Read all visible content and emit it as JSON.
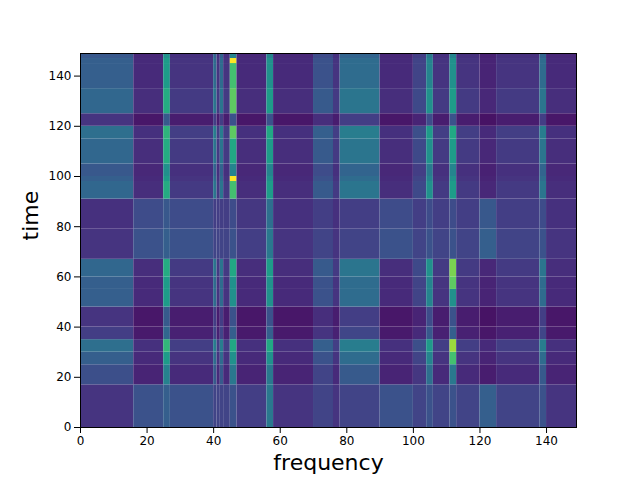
{
  "chart_data": {
    "type": "heatmap",
    "x_label": "frequency",
    "y_label": "time",
    "xlim": [
      0,
      149
    ],
    "ylim": [
      0,
      149
    ],
    "xticks": [
      0,
      20,
      40,
      60,
      80,
      100,
      120,
      140
    ],
    "yticks": [
      0,
      20,
      40,
      60,
      80,
      100,
      120,
      140
    ],
    "color": "viridis",
    "color_range": [
      0,
      1
    ],
    "x_edges": [
      0,
      16,
      25,
      27,
      40,
      41,
      42,
      43,
      45,
      47,
      56,
      58,
      70,
      76,
      78,
      90,
      100,
      104,
      106,
      111,
      113,
      120,
      125,
      138,
      140,
      149
    ],
    "y_edges": [
      0,
      17,
      25,
      30,
      35,
      40,
      48,
      55,
      60,
      67,
      79,
      91,
      98,
      100,
      105,
      115,
      120,
      125,
      135,
      145,
      147,
      149
    ],
    "cells": [
      [
        0.15,
        0.25,
        0.3,
        0.25,
        0.2,
        0.2,
        0.2,
        0.2,
        0.25,
        0.18,
        0.4,
        0.15,
        0.2,
        0.15,
        0.2,
        0.25,
        0.2,
        0.25,
        0.2,
        0.25,
        0.2,
        0.3,
        0.2,
        0.25,
        0.15
      ],
      [
        0.24,
        0.1,
        0.44,
        0.12,
        0.28,
        0.12,
        0.28,
        0.12,
        0.4,
        0.1,
        0.4,
        0.1,
        0.2,
        0.12,
        0.28,
        0.1,
        0.16,
        0.36,
        0.12,
        0.4,
        0.12,
        0.08,
        0.12,
        0.28,
        0.1
      ],
      [
        0.3,
        0.12,
        0.55,
        0.15,
        0.35,
        0.15,
        0.35,
        0.15,
        0.5,
        0.12,
        0.5,
        0.12,
        0.25,
        0.15,
        0.35,
        0.12,
        0.2,
        0.45,
        0.15,
        0.7,
        0.15,
        0.1,
        0.15,
        0.35,
        0.12
      ],
      [
        0.36,
        0.14,
        0.66,
        0.18,
        0.42,
        0.18,
        0.42,
        0.18,
        0.6,
        0.14,
        0.6,
        0.14,
        0.3,
        0.18,
        0.42,
        0.14,
        0.24,
        0.54,
        0.18,
        0.85,
        0.18,
        0.12,
        0.18,
        0.42,
        0.14
      ],
      [
        0.18,
        0.07,
        0.33,
        0.09,
        0.21,
        0.09,
        0.21,
        0.09,
        0.3,
        0.07,
        0.3,
        0.07,
        0.15,
        0.09,
        0.21,
        0.07,
        0.12,
        0.27,
        0.09,
        0.3,
        0.09,
        0.06,
        0.09,
        0.21,
        0.07
      ],
      [
        0.15,
        0.06,
        0.28,
        0.08,
        0.18,
        0.08,
        0.18,
        0.08,
        0.25,
        0.06,
        0.25,
        0.06,
        0.13,
        0.08,
        0.18,
        0.06,
        0.1,
        0.23,
        0.08,
        0.25,
        0.08,
        0.05,
        0.08,
        0.18,
        0.06
      ],
      [
        0.3,
        0.12,
        0.55,
        0.15,
        0.35,
        0.15,
        0.35,
        0.15,
        0.5,
        0.12,
        0.5,
        0.12,
        0.25,
        0.15,
        0.35,
        0.12,
        0.2,
        0.45,
        0.15,
        0.5,
        0.15,
        0.1,
        0.15,
        0.35,
        0.12
      ],
      [
        0.3,
        0.12,
        0.55,
        0.15,
        0.35,
        0.15,
        0.35,
        0.15,
        0.5,
        0.12,
        0.5,
        0.12,
        0.25,
        0.15,
        0.35,
        0.12,
        0.2,
        0.45,
        0.15,
        0.75,
        0.15,
        0.1,
        0.15,
        0.35,
        0.12
      ],
      [
        0.33,
        0.13,
        0.61,
        0.17,
        0.39,
        0.17,
        0.39,
        0.17,
        0.6,
        0.13,
        0.55,
        0.13,
        0.28,
        0.17,
        0.39,
        0.13,
        0.22,
        0.5,
        0.17,
        0.8,
        0.17,
        0.11,
        0.17,
        0.39,
        0.13
      ],
      [
        0.15,
        0.25,
        0.3,
        0.25,
        0.2,
        0.2,
        0.2,
        0.2,
        0.25,
        0.18,
        0.4,
        0.15,
        0.2,
        0.15,
        0.2,
        0.25,
        0.2,
        0.25,
        0.2,
        0.25,
        0.2,
        0.3,
        0.2,
        0.25,
        0.15
      ],
      [
        0.14,
        0.23,
        0.27,
        0.23,
        0.18,
        0.18,
        0.18,
        0.18,
        0.23,
        0.16,
        0.36,
        0.14,
        0.18,
        0.14,
        0.18,
        0.23,
        0.18,
        0.23,
        0.18,
        0.23,
        0.18,
        0.27,
        0.18,
        0.23,
        0.14
      ],
      [
        0.33,
        0.13,
        0.61,
        0.17,
        0.39,
        0.17,
        0.39,
        0.17,
        0.7,
        0.13,
        0.55,
        0.13,
        0.28,
        0.17,
        0.39,
        0.13,
        0.22,
        0.5,
        0.17,
        0.55,
        0.17,
        0.11,
        0.17,
        0.39,
        0.13
      ],
      [
        0.3,
        0.12,
        0.55,
        0.15,
        0.35,
        0.15,
        0.35,
        0.15,
        1.0,
        0.12,
        0.5,
        0.12,
        0.25,
        0.15,
        0.35,
        0.12,
        0.2,
        0.45,
        0.15,
        0.5,
        0.15,
        0.1,
        0.15,
        0.35,
        0.12
      ],
      [
        0.27,
        0.11,
        0.5,
        0.14,
        0.32,
        0.14,
        0.32,
        0.14,
        0.45,
        0.11,
        0.45,
        0.11,
        0.23,
        0.14,
        0.32,
        0.11,
        0.18,
        0.41,
        0.14,
        0.45,
        0.14,
        0.09,
        0.14,
        0.32,
        0.11
      ],
      [
        0.33,
        0.13,
        0.61,
        0.17,
        0.39,
        0.17,
        0.39,
        0.17,
        0.6,
        0.13,
        0.55,
        0.13,
        0.28,
        0.17,
        0.39,
        0.13,
        0.22,
        0.5,
        0.17,
        0.55,
        0.17,
        0.11,
        0.17,
        0.39,
        0.13
      ],
      [
        0.36,
        0.14,
        0.65,
        0.18,
        0.42,
        0.18,
        0.42,
        0.18,
        0.75,
        0.14,
        0.6,
        0.14,
        0.3,
        0.18,
        0.42,
        0.14,
        0.24,
        0.54,
        0.18,
        0.6,
        0.18,
        0.12,
        0.18,
        0.42,
        0.14
      ],
      [
        0.15,
        0.06,
        0.28,
        0.08,
        0.18,
        0.08,
        0.18,
        0.08,
        0.25,
        0.06,
        0.25,
        0.06,
        0.13,
        0.08,
        0.18,
        0.06,
        0.1,
        0.23,
        0.08,
        0.25,
        0.08,
        0.05,
        0.08,
        0.18,
        0.06
      ],
      [
        0.33,
        0.13,
        0.61,
        0.17,
        0.39,
        0.17,
        0.39,
        0.17,
        0.75,
        0.13,
        0.55,
        0.13,
        0.28,
        0.17,
        0.39,
        0.13,
        0.22,
        0.5,
        0.17,
        0.55,
        0.17,
        0.11,
        0.17,
        0.39,
        0.13
      ],
      [
        0.3,
        0.12,
        0.55,
        0.15,
        0.35,
        0.15,
        0.35,
        0.15,
        0.7,
        0.12,
        0.5,
        0.12,
        0.25,
        0.15,
        0.35,
        0.12,
        0.2,
        0.45,
        0.15,
        0.5,
        0.15,
        0.1,
        0.15,
        0.35,
        0.12
      ],
      [
        0.3,
        0.12,
        0.55,
        0.15,
        0.35,
        0.15,
        0.35,
        0.15,
        1.0,
        0.12,
        0.5,
        0.12,
        0.25,
        0.15,
        0.35,
        0.12,
        0.2,
        0.45,
        0.15,
        0.5,
        0.15,
        0.1,
        0.15,
        0.35,
        0.12
      ],
      [
        0.27,
        0.11,
        0.5,
        0.14,
        0.32,
        0.14,
        0.32,
        0.14,
        0.45,
        0.11,
        0.45,
        0.11,
        0.23,
        0.14,
        0.32,
        0.11,
        0.18,
        0.41,
        0.14,
        0.45,
        0.14,
        0.09,
        0.14,
        0.32,
        0.11
      ]
    ]
  }
}
